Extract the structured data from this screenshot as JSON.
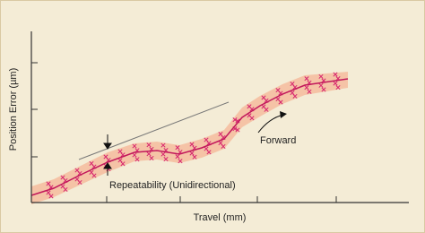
{
  "axes": {
    "y_label": "Position Error (µm)",
    "x_label": "Travel (mm)"
  },
  "annotations": {
    "forward": "Forward",
    "repeatability": "Repeatability (Unidirectional)"
  }
}
